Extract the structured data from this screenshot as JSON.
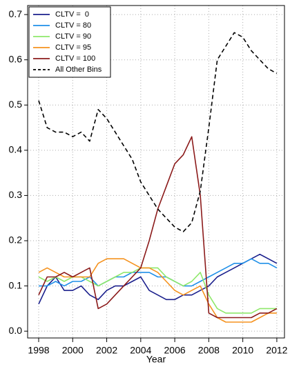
{
  "chart_data": {
    "type": "line",
    "x_label": "Year",
    "x": [
      1998,
      1998.5,
      1999,
      1999.5,
      2000,
      2000.5,
      2001,
      2001.5,
      2002,
      2002.5,
      2003,
      2003.5,
      2004,
      2004.5,
      2005,
      2005.5,
      2006,
      2006.5,
      2007,
      2007.5,
      2008,
      2008.5,
      2009,
      2009.5,
      2010,
      2010.5,
      2011,
      2011.5,
      2012
    ],
    "series": [
      {
        "name": "CLTV =  0",
        "color": "#1a1f8c",
        "dashed": false,
        "values": [
          0.06,
          0.1,
          0.12,
          0.09,
          0.09,
          0.1,
          0.08,
          0.07,
          0.09,
          0.1,
          0.1,
          0.11,
          0.12,
          0.09,
          0.08,
          0.07,
          0.07,
          0.08,
          0.08,
          0.09,
          0.1,
          0.12,
          0.13,
          0.14,
          0.15,
          0.16,
          0.17,
          0.16,
          0.15
        ]
      },
      {
        "name": "CLTV = 80",
        "color": "#1e8fe8",
        "dashed": false,
        "values": [
          0.1,
          0.1,
          0.11,
          0.1,
          0.11,
          0.11,
          0.12,
          0.1,
          0.11,
          0.12,
          0.12,
          0.13,
          0.13,
          0.13,
          0.12,
          0.12,
          0.11,
          0.1,
          0.1,
          0.11,
          0.12,
          0.13,
          0.14,
          0.15,
          0.15,
          0.16,
          0.15,
          0.15,
          0.14
        ]
      },
      {
        "name": "CLTV = 90",
        "color": "#8ee86a",
        "dashed": false,
        "values": [
          0.12,
          0.11,
          0.12,
          0.11,
          0.12,
          0.12,
          0.11,
          0.1,
          0.11,
          0.12,
          0.13,
          0.13,
          0.14,
          0.14,
          0.14,
          0.12,
          0.11,
          0.1,
          0.11,
          0.13,
          0.08,
          0.05,
          0.04,
          0.04,
          0.04,
          0.04,
          0.05,
          0.05,
          0.05
        ]
      },
      {
        "name": "CLTV = 95",
        "color": "#f5921e",
        "dashed": false,
        "values": [
          0.13,
          0.14,
          0.13,
          0.12,
          0.12,
          0.12,
          0.12,
          0.15,
          0.16,
          0.16,
          0.16,
          0.15,
          0.14,
          0.14,
          0.13,
          0.11,
          0.09,
          0.08,
          0.09,
          0.1,
          0.06,
          0.03,
          0.02,
          0.02,
          0.02,
          0.02,
          0.03,
          0.04,
          0.04
        ]
      },
      {
        "name": "CLTV = 100",
        "color": "#8b1a1a",
        "dashed": false,
        "values": [
          0.08,
          0.12,
          0.12,
          0.13,
          0.12,
          0.13,
          0.14,
          0.05,
          0.06,
          0.08,
          0.1,
          0.12,
          0.14,
          0.2,
          0.27,
          0.32,
          0.37,
          0.39,
          0.43,
          0.3,
          0.04,
          0.03,
          0.03,
          0.03,
          0.03,
          0.03,
          0.04,
          0.04,
          0.05
        ]
      },
      {
        "name": "All Other Bins",
        "color": "#000000",
        "dashed": true,
        "values": [
          0.51,
          0.45,
          0.44,
          0.44,
          0.43,
          0.44,
          0.42,
          0.49,
          0.47,
          0.44,
          0.41,
          0.38,
          0.33,
          0.3,
          0.27,
          0.25,
          0.23,
          0.22,
          0.24,
          0.31,
          0.45,
          0.6,
          0.63,
          0.66,
          0.65,
          0.62,
          0.6,
          0.58,
          0.57
        ]
      }
    ],
    "xlim": [
      1997.35,
      2012.45
    ],
    "ylim": [
      -0.015,
      0.72
    ],
    "xticks": [
      1998,
      2000,
      2002,
      2004,
      2006,
      2008,
      2010,
      2012
    ],
    "yticks": [
      {
        "value": 0,
        "label": "0.0"
      },
      0.1,
      0.2,
      0.3,
      0.4,
      0.5,
      0.6,
      0.7
    ],
    "grid": true,
    "legend": "top-left"
  }
}
